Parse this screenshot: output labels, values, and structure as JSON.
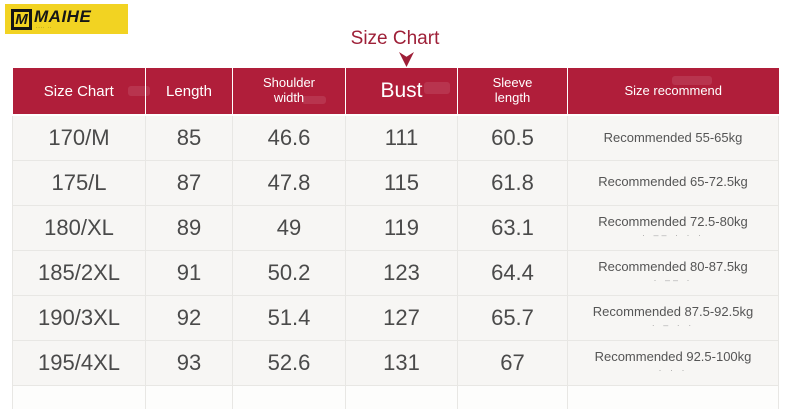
{
  "logo": {
    "m": "M",
    "brand": "MAIHE",
    "tagline_marks": "···· ··"
  },
  "title": {
    "text": "Size Chart"
  },
  "table": {
    "columns": [
      "Size Chart",
      "Length",
      "Shoulder\nwidth",
      "Bust",
      "Sleeve\nlength",
      "Size recommend"
    ],
    "rows": [
      {
        "cells": [
          "170/M",
          "85",
          "46.6",
          "111",
          "60.5"
        ],
        "recommend": "Recommended 55-65kg",
        "remnant": ""
      },
      {
        "cells": [
          "175/L",
          "87",
          "47.8",
          "115",
          "61.8"
        ],
        "recommend": "Recommended 65-72.5kg",
        "remnant": ""
      },
      {
        "cells": [
          "180/XL",
          "89",
          "49",
          "119",
          "63.1"
        ],
        "recommend": "Recommended 72.5-80kg",
        "remnant": "· –– ·  ·   ·"
      },
      {
        "cells": [
          "185/2XL",
          "91",
          "50.2",
          "123",
          "64.4"
        ],
        "recommend": "Recommended 80-87.5kg",
        "remnant": "· –– ·"
      },
      {
        "cells": [
          "190/3XL",
          "92",
          "51.4",
          "127",
          "65.7"
        ],
        "recommend": "Recommended 87.5-92.5kg",
        "remnant": "· –  · ·"
      },
      {
        "cells": [
          "195/4XL",
          "93",
          "52.6",
          "131",
          "67"
        ],
        "recommend": "Recommended 92.5-100kg",
        "remnant": "·   ·  ·"
      }
    ]
  },
  "chart_data": {
    "type": "table",
    "title": "Size Chart",
    "columns": [
      "Size Chart",
      "Length",
      "Shoulder width",
      "Bust",
      "Sleeve length",
      "Size recommend"
    ],
    "rows": [
      [
        "170/M",
        85,
        46.6,
        111,
        60.5,
        "Recommended 55-65kg"
      ],
      [
        "175/L",
        87,
        47.8,
        115,
        61.8,
        "Recommended 65-72.5kg"
      ],
      [
        "180/XL",
        89,
        49,
        119,
        63.1,
        "Recommended 72.5-80kg"
      ],
      [
        "185/2XL",
        91,
        50.2,
        123,
        64.4,
        "Recommended 80-87.5kg"
      ],
      [
        "190/3XL",
        92,
        51.4,
        127,
        65.7,
        "Recommended 87.5-92.5kg"
      ],
      [
        "195/4XL",
        93,
        52.6,
        131,
        67,
        "Recommended 92.5-100kg"
      ]
    ],
    "colors": {
      "header_background": "#b01e3a",
      "header_text": "#ffffff",
      "title_text": "#9e2038",
      "logo_background": "#f2d322"
    }
  }
}
